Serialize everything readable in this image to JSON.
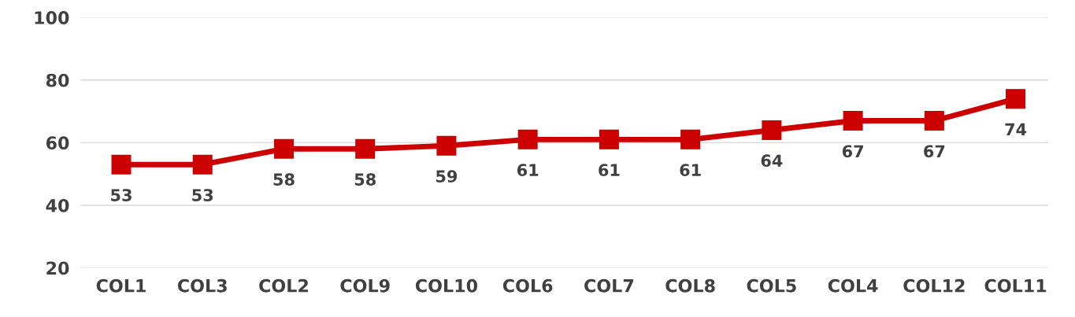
{
  "chart_data": {
    "type": "line",
    "categories": [
      "COL1",
      "COL3",
      "COL2",
      "COL9",
      "COL10",
      "COL6",
      "COL7",
      "COL8",
      "COL5",
      "COL4",
      "COL12",
      "COL11"
    ],
    "series": [
      {
        "color": "#cc0000",
        "values": [
          53,
          53,
          58,
          58,
          59,
          61,
          61,
          61,
          64,
          67,
          67,
          74
        ]
      }
    ],
    "ylim": [
      20,
      100
    ],
    "yticks": [
      20,
      40,
      60,
      80,
      100
    ],
    "grid": "y",
    "marker": "square",
    "line_style": "solid",
    "data_labels": true
  }
}
